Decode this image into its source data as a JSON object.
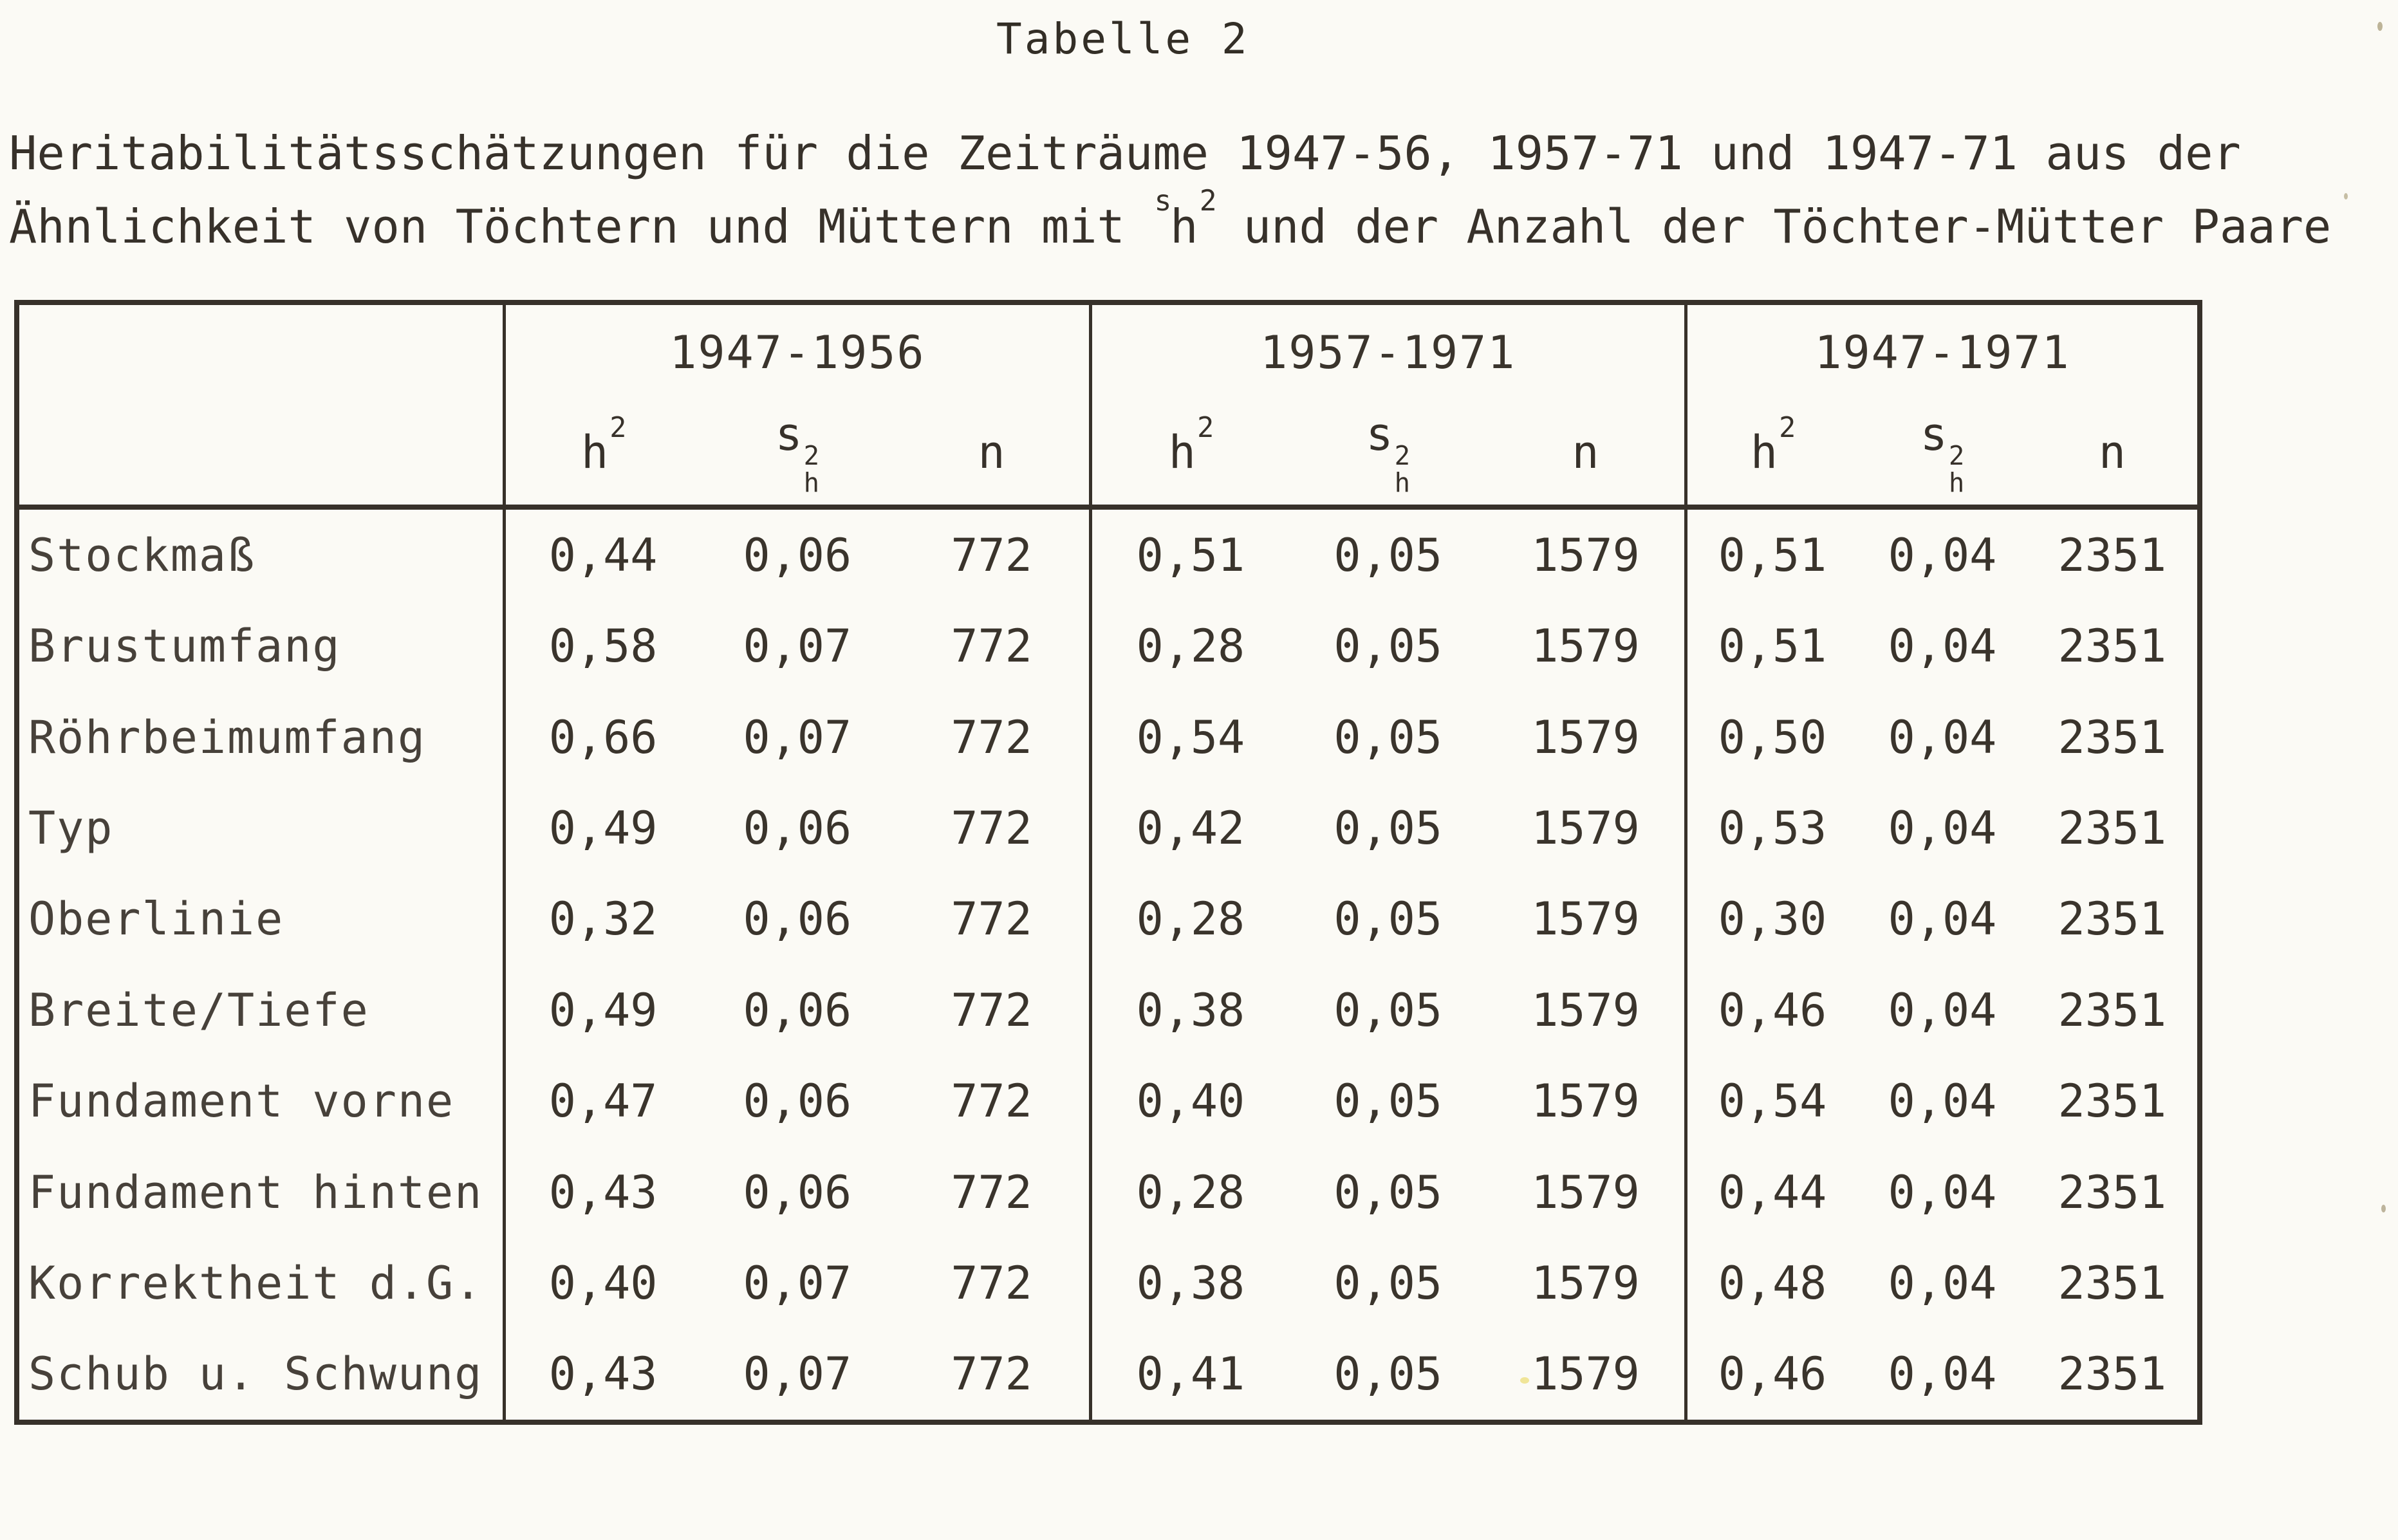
{
  "page": {
    "title": "Tabelle 2",
    "subtitle_line1": "Heritabilitätsschätzungen für die Zeiträume 1947-56, 1957-71 und 1947-71 aus der",
    "subtitle_line2_prefix": "Ähnlichkeit von Töchtern und Müttern mit ",
    "formula": {
      "sup_s": "s",
      "h": "h",
      "sup_2": "2"
    },
    "subtitle_line2_suffix": " und der Anzahl der Töchter-Mütter Paare"
  },
  "table": {
    "groups": [
      {
        "period": "1947-1956"
      },
      {
        "period": "1957-1971"
      },
      {
        "period": "1947-1971"
      }
    ],
    "symbols": {
      "h": "h",
      "sup2": "2",
      "s": "s",
      "sub_h": "h",
      "n": "n"
    },
    "rows": [
      {
        "label": "Stockmaß",
        "g1": [
          "0,44",
          "0,06",
          "772"
        ],
        "g2": [
          "0,51",
          "0,05",
          "1579"
        ],
        "g3": [
          "0,51",
          "0,04",
          "2351"
        ]
      },
      {
        "label": "Brustumfang",
        "g1": [
          "0,58",
          "0,07",
          "772"
        ],
        "g2": [
          "0,28",
          "0,05",
          "1579"
        ],
        "g3": [
          "0,51",
          "0,04",
          "2351"
        ]
      },
      {
        "label": "Röhrbeimumfang",
        "g1": [
          "0,66",
          "0,07",
          "772"
        ],
        "g2": [
          "0,54",
          "0,05",
          "1579"
        ],
        "g3": [
          "0,50",
          "0,04",
          "2351"
        ]
      },
      {
        "label": "Typ",
        "g1": [
          "0,49",
          "0,06",
          "772"
        ],
        "g2": [
          "0,42",
          "0,05",
          "1579"
        ],
        "g3": [
          "0,53",
          "0,04",
          "2351"
        ]
      },
      {
        "label": "Oberlinie",
        "g1": [
          "0,32",
          "0,06",
          "772"
        ],
        "g2": [
          "0,28",
          "0,05",
          "1579"
        ],
        "g3": [
          "0,30",
          "0,04",
          "2351"
        ]
      },
      {
        "label": "Breite/Tiefe",
        "g1": [
          "0,49",
          "0,06",
          "772"
        ],
        "g2": [
          "0,38",
          "0,05",
          "1579"
        ],
        "g3": [
          "0,46",
          "0,04",
          "2351"
        ]
      },
      {
        "label": "Fundament vorne",
        "g1": [
          "0,47",
          "0,06",
          "772"
        ],
        "g2": [
          "0,40",
          "0,05",
          "1579"
        ],
        "g3": [
          "0,54",
          "0,04",
          "2351"
        ]
      },
      {
        "label": "Fundament hinten",
        "g1": [
          "0,43",
          "0,06",
          "772"
        ],
        "g2": [
          "0,28",
          "0,05",
          "1579"
        ],
        "g3": [
          "0,44",
          "0,04",
          "2351"
        ]
      },
      {
        "label": "Korrektheit d.G.",
        "g1": [
          "0,40",
          "0,07",
          "772"
        ],
        "g2": [
          "0,38",
          "0,05",
          "1579"
        ],
        "g3": [
          "0,48",
          "0,04",
          "2351"
        ]
      },
      {
        "label": "Schub u. Schwung",
        "g1": [
          "0,43",
          "0,07",
          "772"
        ],
        "g2": [
          "0,41",
          "0,05",
          "1579"
        ],
        "g3": [
          "0,46",
          "0,04",
          "2351"
        ]
      }
    ]
  }
}
